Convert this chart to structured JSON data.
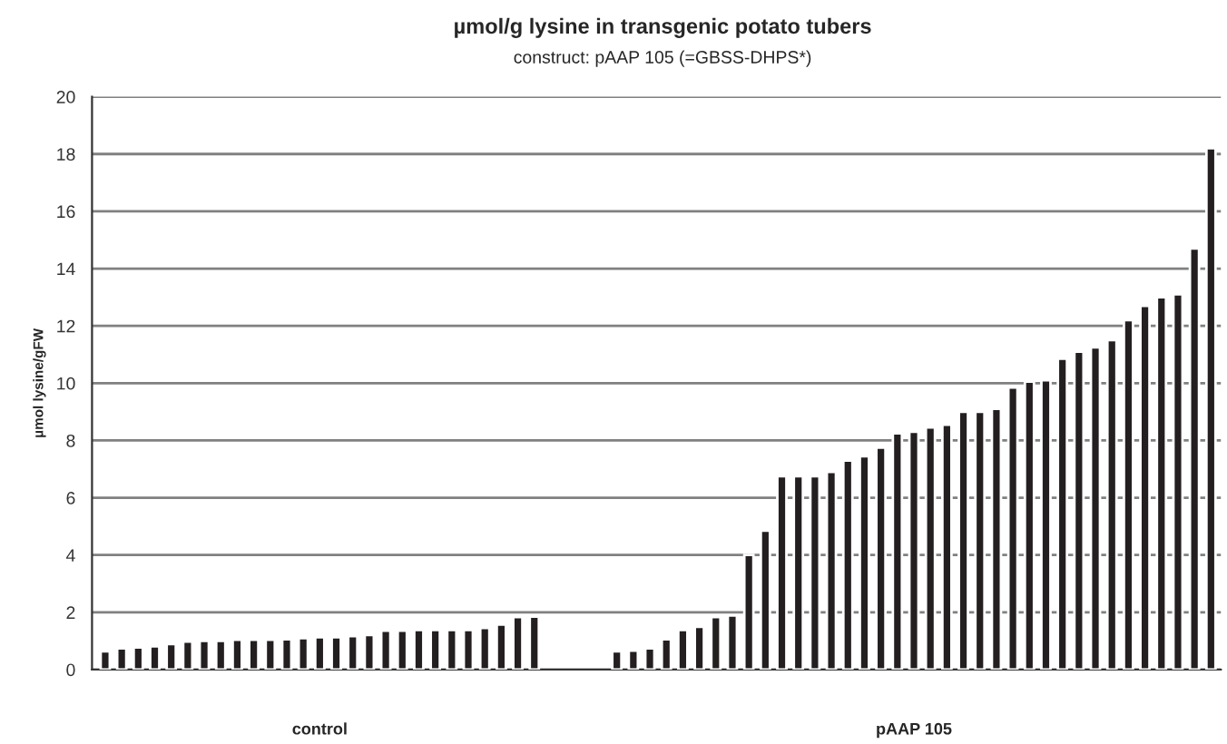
{
  "chart_data": {
    "type": "bar",
    "title": "µmol/g lysine in transgenic potato tubers",
    "subtitle": "construct: pAAP 105 (=GBSS-DHPS*)",
    "ylabel": "µmol lysine/gFW",
    "categories": [
      null,
      null,
      null,
      null,
      null,
      null,
      null,
      null,
      null,
      null,
      null,
      null,
      null,
      null,
      null,
      null,
      null,
      null,
      null,
      null,
      null,
      null,
      null,
      null,
      null,
      null,
      null,
      null,
      null,
      null,
      null,
      null,
      null,
      null,
      null,
      null,
      null,
      null,
      null,
      null,
      null,
      null,
      null,
      null,
      null,
      null,
      null,
      null,
      null,
      null,
      null,
      null,
      null,
      null,
      null,
      null,
      null,
      null,
      null,
      null,
      null,
      null,
      null,
      null,
      null,
      null,
      null,
      null
    ],
    "values": [
      0.64,
      0.74,
      0.77,
      0.81,
      0.89,
      0.98,
      1.0,
      1.0,
      1.04,
      1.04,
      1.04,
      1.06,
      1.1,
      1.13,
      1.13,
      1.17,
      1.21,
      1.36,
      1.36,
      1.38,
      1.38,
      1.38,
      1.38,
      1.45,
      1.57,
      1.83,
      1.85,
      null,
      null,
      null,
      null,
      0.64,
      0.66,
      0.74,
      1.06,
      1.38,
      1.49,
      1.83,
      1.89,
      4.0,
      4.85,
      6.75,
      6.75,
      6.75,
      6.9,
      7.3,
      7.45,
      7.75,
      8.25,
      8.3,
      8.45,
      8.55,
      9.0,
      9.0,
      9.1,
      9.85,
      10.05,
      10.1,
      10.85,
      11.1,
      11.25,
      11.5,
      12.2,
      12.7,
      13.0,
      13.1,
      14.7,
      18.2
    ],
    "color": "#231f20",
    "ylim": [
      0,
      20
    ],
    "yticks": [
      0,
      2,
      4,
      6,
      8,
      10,
      12,
      14,
      16,
      18,
      20
    ],
    "grid": "y",
    "annotations": [
      "control",
      "pAAP 105"
    ]
  }
}
